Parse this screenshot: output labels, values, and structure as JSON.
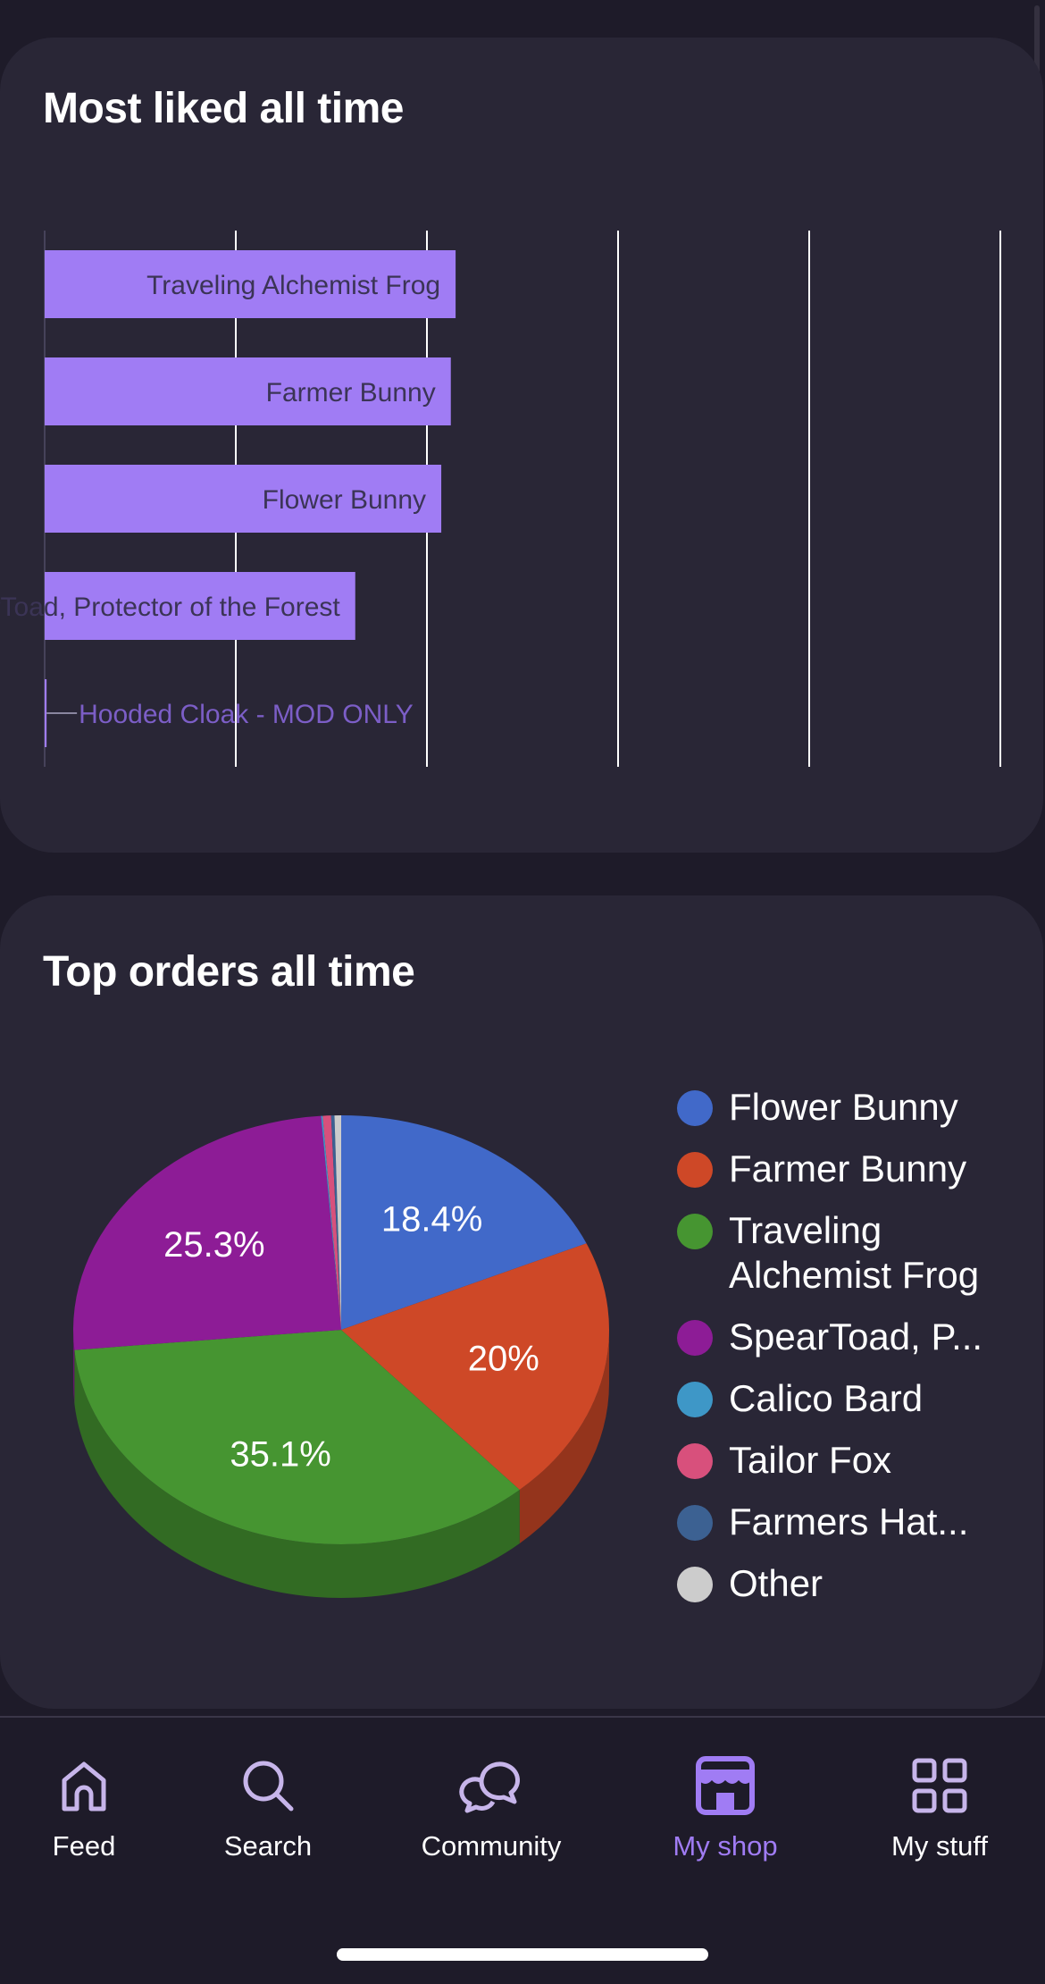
{
  "liked_card": {
    "title": "Most liked all time",
    "chart_data": {
      "type": "bar",
      "orientation": "horizontal",
      "categories": [
        "Traveling Alchemist Frog",
        "Farmer Bunny",
        "Flower Bunny",
        "SpearToad, Protector of the Forest",
        "Hooded Cloak - MOD ONLY"
      ],
      "values": [
        43,
        42.5,
        41.5,
        32.5,
        0.2
      ],
      "xlim": [
        0,
        100
      ],
      "bar_color": "#a07cf4",
      "grid": true
    }
  },
  "orders_card": {
    "title": "Top orders all time",
    "chart_data": {
      "type": "pie",
      "style": "3d",
      "slices": [
        {
          "label": "Flower Bunny",
          "value": 18.4,
          "display": "18.4%",
          "color": "#4169c9"
        },
        {
          "label": "Farmer Bunny",
          "value": 20,
          "display": "20%",
          "color": "#ce4827"
        },
        {
          "label": "Traveling Alchemist Frog",
          "value": 35.1,
          "display": "35.1%",
          "color": "#469531"
        },
        {
          "label": "SpearToad, P...",
          "value": 25.3,
          "display": "25.3%",
          "color": "#8d1c96"
        },
        {
          "label": "Calico Bard",
          "value": 0.1,
          "display": "",
          "color": "#3e97c7"
        },
        {
          "label": "Tailor Fox",
          "value": 0.5,
          "display": "",
          "color": "#d8507c"
        },
        {
          "label": "Farmers Hat...",
          "value": 0.2,
          "display": "",
          "color": "#3c6192"
        },
        {
          "label": "Other",
          "value": 0.4,
          "display": "",
          "color": "#cccccc"
        }
      ]
    }
  },
  "nav": {
    "items": [
      {
        "label": "Feed",
        "icon": "home-icon",
        "active": false
      },
      {
        "label": "Search",
        "icon": "search-icon",
        "active": false
      },
      {
        "label": "Community",
        "icon": "chat-bubbles-icon",
        "active": false
      },
      {
        "label": "My shop",
        "icon": "shop-icon",
        "active": true
      },
      {
        "label": "My stuff",
        "icon": "grid-icon",
        "active": false
      }
    ],
    "active_color": "#a07cf4",
    "icon_color": "#c7b5ea"
  }
}
